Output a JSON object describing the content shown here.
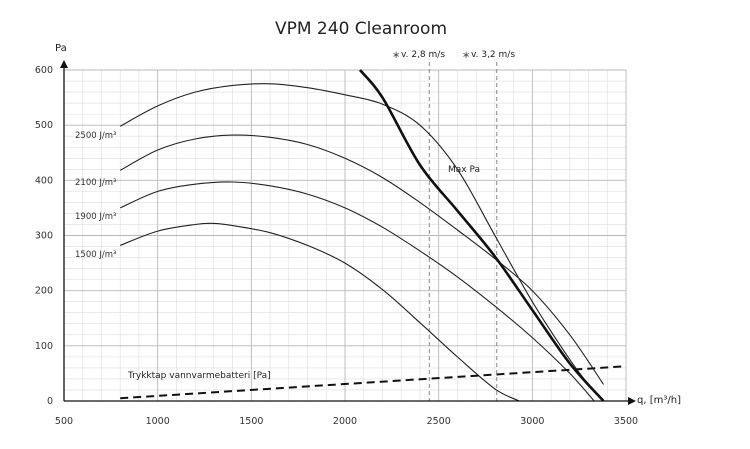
{
  "chart_data": {
    "type": "line",
    "title": "VPM 240 Cleanroom",
    "ylabel": "Pa",
    "xlabel": "q, [m³/h]",
    "xlim": [
      500,
      3500
    ],
    "ylim": [
      0,
      600
    ],
    "x_ticks": [
      "500",
      "1000",
      "1500",
      "2000",
      "2500",
      "3000",
      "3500"
    ],
    "y_ticks": [
      "0",
      "100",
      "200",
      "300",
      "400",
      "500",
      "600"
    ],
    "grid": true,
    "fan_curves": [
      {
        "label": "2500 J/m³",
        "x": [
          800,
          1000,
          1200,
          1400,
          1600,
          1800,
          2000,
          2200,
          2400,
          2600,
          2800,
          3000,
          3200,
          3300,
          3380
        ],
        "y": [
          498,
          535,
          560,
          572,
          575,
          568,
          555,
          538,
          500,
          420,
          300,
          180,
          75,
          30,
          0
        ]
      },
      {
        "label": "2100 J/m³",
        "x": [
          800,
          1000,
          1200,
          1400,
          1600,
          1800,
          2000,
          2200,
          2400,
          2600,
          2800,
          3000,
          3200,
          3380
        ],
        "y": [
          418,
          455,
          475,
          482,
          478,
          465,
          440,
          405,
          360,
          310,
          258,
          200,
          120,
          30
        ]
      },
      {
        "label": "1900 J/m³",
        "x": [
          800,
          1000,
          1200,
          1400,
          1600,
          1800,
          2000,
          2200,
          2400,
          2600,
          2800,
          3000,
          3200,
          3330
        ],
        "y": [
          350,
          380,
          393,
          397,
          390,
          375,
          350,
          315,
          272,
          225,
          172,
          115,
          50,
          0
        ]
      },
      {
        "label": "1500 J/m³",
        "x": [
          800,
          1000,
          1200,
          1300,
          1400,
          1600,
          1800,
          2000,
          2200,
          2400,
          2600,
          2800,
          2930
        ],
        "y": [
          282,
          308,
          320,
          322,
          318,
          305,
          282,
          250,
          202,
          142,
          80,
          22,
          0
        ]
      }
    ],
    "max_pa_line": {
      "label": "Max Pa",
      "x": [
        2080,
        2200,
        2400,
        2600,
        2800,
        3000,
        3200,
        3380
      ],
      "y": [
        600,
        550,
        428,
        345,
        262,
        165,
        68,
        0
      ]
    },
    "velocity_lines": [
      {
        "label": "v. 2,8 m/s",
        "x": 2450
      },
      {
        "label": "v. 3,2 m/s",
        "x": 2810
      }
    ],
    "pressure_drop_line": {
      "label": "Trykktap vannvarmebatteri [Pa]",
      "x": [
        800,
        3500
      ],
      "y": [
        5,
        63
      ]
    }
  }
}
